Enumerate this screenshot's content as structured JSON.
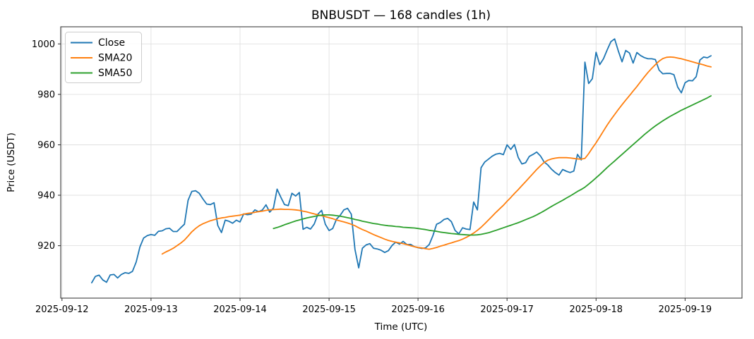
{
  "title": "BNBUSDT — 168 candles (1h)",
  "axes": {
    "xlabel": "Time (UTC)",
    "ylabel": "Price (USDT)"
  },
  "legend": {
    "items": [
      {
        "label": "Close",
        "color": "#1f77b4"
      },
      {
        "label": "SMA20",
        "color": "#ff7f0e"
      },
      {
        "label": "SMA50",
        "color": "#2ca02c"
      }
    ]
  },
  "colors": {
    "background": "#ffffff",
    "grid": "#e0e0e0",
    "spine": "#2b2b2b",
    "close": "#1f77b4",
    "sma20": "#ff7f0e",
    "sma50": "#2ca02c"
  },
  "chart_data": {
    "type": "line",
    "title": "BNBUSDT — 168 candles (1h)",
    "xlabel": "Time (UTC)",
    "ylabel": "Price (USDT)",
    "n_points": 168,
    "x_unit": "candle index (1h each)",
    "xlim": [
      -8.35,
      175.35
    ],
    "ylim": [
      899.2,
      1006.8
    ],
    "grid": true,
    "legend_position": "upper-left",
    "x_ticks": [
      {
        "pos": -8,
        "label": "2025-09-12"
      },
      {
        "pos": 16,
        "label": "2025-09-13"
      },
      {
        "pos": 40,
        "label": "2025-09-14"
      },
      {
        "pos": 64,
        "label": "2025-09-15"
      },
      {
        "pos": 88,
        "label": "2025-09-16"
      },
      {
        "pos": 112,
        "label": "2025-09-17"
      },
      {
        "pos": 136,
        "label": "2025-09-18"
      },
      {
        "pos": 160,
        "label": "2025-09-19"
      }
    ],
    "y_ticks": [
      920,
      940,
      960,
      980,
      1000
    ],
    "series": [
      {
        "name": "Close",
        "color": "#1f77b4",
        "values": [
          905.3,
          907.8,
          908.3,
          906.4,
          905.5,
          908.4,
          908.6,
          907.2,
          908.6,
          909.3,
          909.0,
          909.8,
          913.5,
          919.5,
          923.0,
          924.0,
          924.4,
          924.1,
          925.7,
          925.9,
          926.7,
          926.9,
          925.6,
          925.6,
          927.1,
          928.5,
          938.0,
          941.5,
          941.8,
          940.8,
          938.5,
          936.5,
          936.3,
          937.0,
          928.0,
          925.2,
          930.1,
          929.7,
          928.9,
          930.1,
          929.4,
          932.6,
          932.3,
          932.5,
          934.2,
          933.5,
          934.1,
          936.2,
          933.3,
          934.9,
          942.4,
          939.2,
          936.3,
          935.9,
          940.8,
          939.7,
          941.1,
          926.5,
          927.3,
          926.6,
          928.6,
          932.5,
          934.0,
          928.5,
          926.0,
          926.8,
          930.5,
          932.0,
          934.2,
          934.8,
          932.5,
          918.5,
          911.2,
          919.0,
          920.3,
          920.8,
          919.0,
          918.7,
          918.2,
          917.3,
          918.0,
          920.1,
          921.4,
          920.6,
          921.7,
          920.4,
          920.5,
          919.6,
          919.2,
          918.9,
          919.1,
          920.4,
          924.0,
          928.5,
          929.2,
          930.4,
          930.8,
          929.5,
          926.0,
          924.7,
          927.1,
          926.6,
          926.4,
          937.3,
          934.2,
          950.9,
          953.2,
          954.3,
          955.5,
          956.3,
          956.6,
          956.1,
          960.0,
          958.2,
          960.1,
          955.0,
          952.4,
          952.9,
          955.4,
          956.2,
          957.1,
          955.6,
          953.2,
          952.0,
          950.3,
          949.0,
          948.0,
          950.2,
          949.5,
          949.0,
          949.6,
          956.2,
          954.0,
          992.8,
          984.3,
          986.2,
          996.7,
          991.8,
          994.1,
          997.6,
          1000.9,
          1002.0,
          997.2,
          992.9,
          997.4,
          996.4,
          992.4,
          996.6,
          995.4,
          994.6,
          994.1,
          994.1,
          993.8,
          989.6,
          988.2,
          988.3,
          988.3,
          987.8,
          982.9,
          980.6,
          984.6,
          985.5,
          985.4,
          987.0,
          993.6,
          994.8,
          994.5,
          995.3
        ]
      },
      {
        "name": "SMA20",
        "color": "#ff7f0e",
        "values": [
          null,
          null,
          null,
          null,
          null,
          null,
          null,
          null,
          null,
          null,
          null,
          null,
          null,
          null,
          null,
          null,
          null,
          null,
          null,
          916.7,
          917.5,
          918.2,
          919.0,
          920.0,
          921.0,
          922.2,
          923.8,
          925.5,
          926.8,
          927.9,
          928.7,
          929.3,
          929.9,
          930.3,
          930.7,
          931.0,
          931.2,
          931.5,
          931.7,
          931.9,
          932.1,
          932.5,
          932.8,
          933.0,
          933.2,
          933.5,
          933.7,
          934.0,
          934.2,
          934.3,
          934.4,
          934.5,
          934.4,
          934.4,
          934.3,
          934.2,
          934.0,
          933.7,
          933.4,
          933.0,
          932.6,
          932.2,
          931.9,
          931.5,
          931.1,
          930.7,
          930.2,
          929.8,
          929.4,
          929.0,
          928.5,
          927.9,
          927.1,
          926.4,
          925.8,
          925.1,
          924.4,
          923.8,
          923.2,
          922.6,
          922.1,
          921.7,
          921.4,
          921.1,
          920.8,
          920.4,
          920.0,
          919.6,
          919.3,
          919.1,
          918.8,
          918.6,
          918.9,
          919.3,
          919.8,
          920.2,
          920.7,
          921.1,
          921.6,
          922.0,
          922.6,
          923.3,
          924.1,
          925.0,
          926.1,
          927.3,
          928.7,
          930.2,
          931.7,
          933.2,
          934.6,
          936.0,
          937.6,
          939.1,
          940.7,
          942.2,
          943.8,
          945.4,
          947.0,
          948.6,
          950.2,
          951.7,
          953.0,
          953.9,
          954.4,
          954.7,
          954.9,
          954.9,
          954.9,
          954.8,
          954.6,
          954.4,
          954.3,
          954.6,
          956.5,
          958.7,
          960.8,
          963.1,
          965.5,
          967.8,
          970.0,
          972.0,
          974.0,
          975.9,
          977.7,
          979.5,
          981.3,
          983.1,
          985.0,
          986.9,
          988.7,
          990.3,
          991.8,
          993.2,
          994.2,
          994.7,
          994.8,
          994.7,
          994.4,
          994.1,
          993.7,
          993.3,
          992.9,
          992.5,
          992.1,
          991.7,
          991.2,
          990.9
        ]
      },
      {
        "name": "SMA50",
        "color": "#2ca02c",
        "values": [
          null,
          null,
          null,
          null,
          null,
          null,
          null,
          null,
          null,
          null,
          null,
          null,
          null,
          null,
          null,
          null,
          null,
          null,
          null,
          null,
          null,
          null,
          null,
          null,
          null,
          null,
          null,
          null,
          null,
          null,
          null,
          null,
          null,
          null,
          null,
          null,
          null,
          null,
          null,
          null,
          null,
          null,
          null,
          null,
          null,
          null,
          null,
          null,
          null,
          926.8,
          927.2,
          927.7,
          928.3,
          928.8,
          929.3,
          929.8,
          930.2,
          930.6,
          931.0,
          931.3,
          931.6,
          931.9,
          932.1,
          932.2,
          932.2,
          932.1,
          931.9,
          931.7,
          931.4,
          931.1,
          930.8,
          930.4,
          930.1,
          929.7,
          929.4,
          929.1,
          928.8,
          928.6,
          928.3,
          928.1,
          927.9,
          927.8,
          927.6,
          927.5,
          927.3,
          927.2,
          927.1,
          927.0,
          926.8,
          926.6,
          926.4,
          926.1,
          925.9,
          925.7,
          925.4,
          925.2,
          925.0,
          924.8,
          924.7,
          924.5,
          924.4,
          924.3,
          924.2,
          924.2,
          924.3,
          924.5,
          924.8,
          925.1,
          925.6,
          926.1,
          926.6,
          927.1,
          927.6,
          928.1,
          928.6,
          929.1,
          929.7,
          930.3,
          930.9,
          931.5,
          932.2,
          933.0,
          933.8,
          934.7,
          935.6,
          936.4,
          937.2,
          938.0,
          938.9,
          939.7,
          940.6,
          941.5,
          942.3,
          943.2,
          944.4,
          945.6,
          946.9,
          948.2,
          949.6,
          951.0,
          952.3,
          953.6,
          954.9,
          956.2,
          957.5,
          958.8,
          960.1,
          961.4,
          962.7,
          964.0,
          965.2,
          966.4,
          967.5,
          968.5,
          969.5,
          970.4,
          971.3,
          972.1,
          972.9,
          973.7,
          974.4,
          975.1,
          975.8,
          976.5,
          977.2,
          977.9,
          978.6,
          979.4
        ]
      }
    ]
  }
}
